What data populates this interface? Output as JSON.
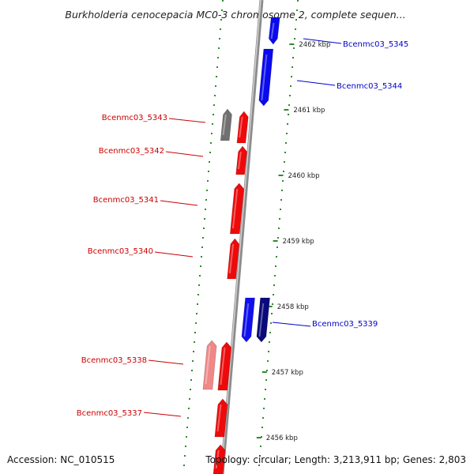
{
  "title": "Burkholderia cenocepacia MC0-3 chromosome 2, complete sequen...",
  "footer": {
    "accession": "Accession: NC_010515",
    "summary": "Topology: circular; Length: 3,213,911 bp; Genes: 2,803"
  },
  "colors": {
    "backbone": "#8c8c8c",
    "tick": "#2e8b2e",
    "forward_label": "#0000cc",
    "reverse_label": "#cc0000"
  },
  "ticks": [
    {
      "label": "2462 kbp"
    },
    {
      "label": "2461 kbp"
    },
    {
      "label": "2460 kbp"
    },
    {
      "label": "2459 kbp"
    },
    {
      "label": "2458 kbp"
    },
    {
      "label": "2457 kbp"
    },
    {
      "label": "2456 kbp"
    }
  ],
  "genes": [
    {
      "label": "Bcenmc03_5345",
      "strand": "forward",
      "color": "#0a0aee"
    },
    {
      "label": "Bcenmc03_5344",
      "strand": "forward",
      "color": "#0a0aee"
    },
    {
      "label": "Bcenmc03_5343",
      "strand": "reverse",
      "color": "#ee0a0a"
    },
    {
      "label": "",
      "strand": "reverse",
      "color": "#707070"
    },
    {
      "label": "Bcenmc03_5342",
      "strand": "reverse",
      "color": "#ee0a0a"
    },
    {
      "label": "Bcenmc03_5341",
      "strand": "reverse",
      "color": "#ee0a0a"
    },
    {
      "label": "Bcenmc03_5340",
      "strand": "reverse",
      "color": "#ee0a0a"
    },
    {
      "label": "",
      "strand": "forward",
      "color": "#1010ee"
    },
    {
      "label": "Bcenmc03_5339",
      "strand": "forward",
      "color": "#0a0a7a"
    },
    {
      "label": "Bcenmc03_5338",
      "strand": "reverse",
      "color": "#ee0a0a"
    },
    {
      "label": "",
      "strand": "reverse",
      "color": "#f08888"
    },
    {
      "label": "Bcenmc03_5337",
      "strand": "reverse",
      "color": "#ee0a0a"
    },
    {
      "label": "",
      "strand": "reverse",
      "color": "#ee0a0a"
    }
  ]
}
